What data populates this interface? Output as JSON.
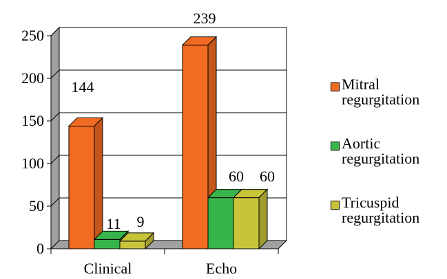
{
  "chart_data": {
    "type": "bar",
    "categories": [
      "Clinical",
      "Echo"
    ],
    "series": [
      {
        "name": "Mitral regurgitation",
        "values": [
          144,
          239
        ],
        "color": "#F26B22"
      },
      {
        "name": "Aortic regurgitation",
        "values": [
          11,
          60
        ],
        "color": "#37B44A"
      },
      {
        "name": "Tricuspid regurgitation",
        "values": [
          9,
          60
        ],
        "color": "#C8C43A"
      }
    ],
    "data_labels": [
      [
        "144",
        "239"
      ],
      [
        "11",
        "60"
      ],
      [
        "9",
        "60"
      ]
    ],
    "yticks": [
      "0",
      "50",
      "100",
      "150",
      "200",
      "250"
    ],
    "ylim": [
      0,
      250
    ],
    "grid": true,
    "three_d": true,
    "legend_position": "right"
  }
}
